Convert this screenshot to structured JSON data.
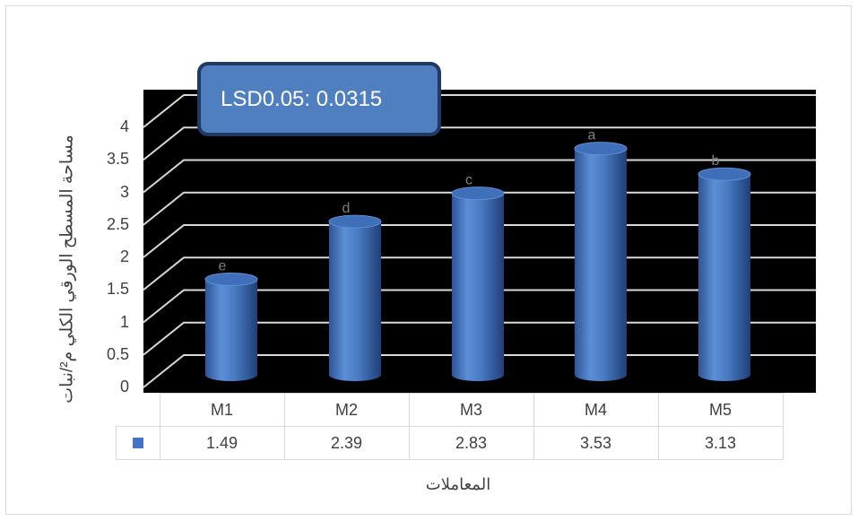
{
  "chart_data": {
    "type": "bar",
    "title": "",
    "xlabel": "المعاملات",
    "ylabel": "مساحة المسطح الورقي الكلي م²/نبات",
    "categories": [
      "M1",
      "M2",
      "M3",
      "M4",
      "M5"
    ],
    "series": [
      {
        "values": [
          1.49,
          2.39,
          2.83,
          3.53,
          3.13
        ]
      }
    ],
    "letters": [
      "e",
      "d",
      "c",
      "a",
      "b"
    ],
    "value_labels": [
      "1.49",
      "2.39",
      "2.83",
      "3.53",
      "3.13"
    ],
    "yticks": [
      "0",
      "0.5",
      "1",
      "1.5",
      "2",
      "2.5",
      "3",
      "3.5",
      "4"
    ],
    "ylim": [
      0,
      4
    ],
    "grid": true,
    "data_table": true,
    "annotation": "LSD0.05: 0.0315",
    "colors": {
      "bar": "#4472c4",
      "plot_background": "#000000",
      "grid": "#d9d9d9"
    }
  }
}
